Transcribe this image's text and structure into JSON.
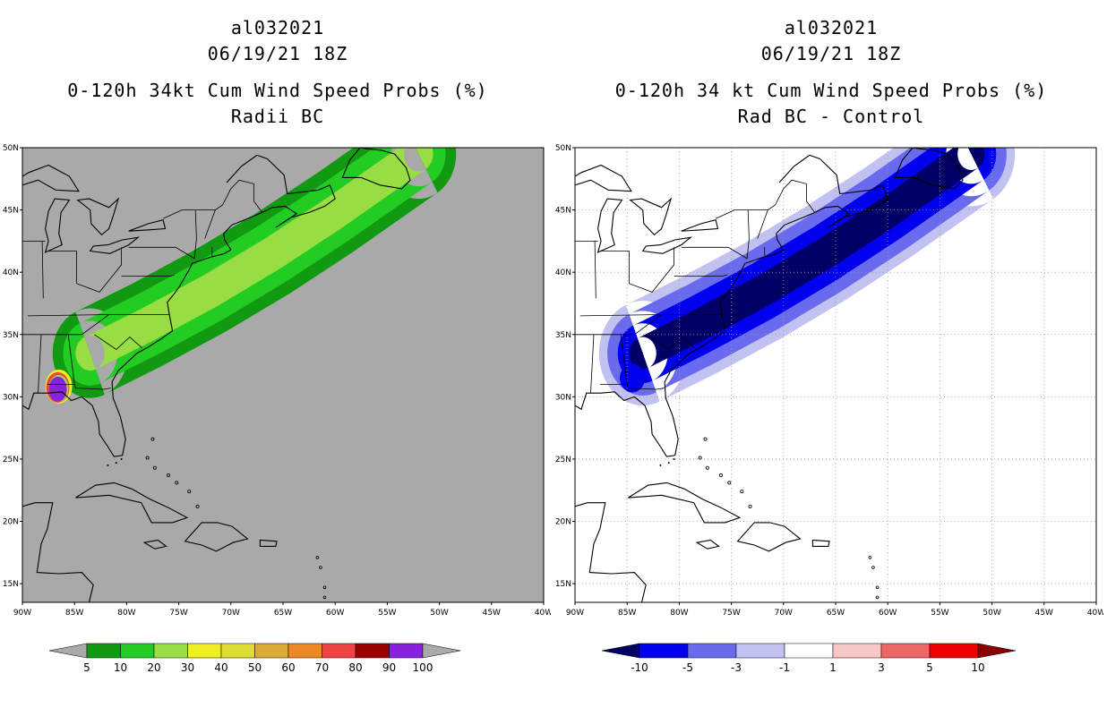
{
  "left_panel": {
    "storm_id": "al032021",
    "datetime": "06/19/21 18Z",
    "title": "0-120h 34kt Cum Wind Speed Probs (%)",
    "subtitle": "Radii BC",
    "background": "#a9a9a9",
    "colorbar": {
      "labels": [
        "5",
        "10",
        "20",
        "30",
        "40",
        "50",
        "60",
        "70",
        "80",
        "90",
        "100"
      ],
      "colors": [
        "#aaaaaa",
        "#119911",
        "#22cc22",
        "#99dd44",
        "#eeee22",
        "#dddd33",
        "#ddaa33",
        "#ee8822",
        "#ee4444",
        "#990000",
        "#8822dd",
        "#aaaaaa"
      ]
    }
  },
  "right_panel": {
    "storm_id": "al032021",
    "datetime": "06/19/21 18Z",
    "title": "0-120h 34 kt Cum Wind Speed Probs (%)",
    "subtitle": "Rad BC - Control",
    "background": "#ffffff",
    "colorbar": {
      "labels": [
        "-10",
        "-5",
        "-3",
        "-1",
        "1",
        "3",
        "5",
        "10"
      ],
      "colors": [
        "#000066",
        "#0000ee",
        "#6a6aee",
        "#c2c2f2",
        "#ffffff",
        "#f7c6c6",
        "#ee6666",
        "#ee0000",
        "#880000"
      ]
    }
  },
  "axes": {
    "lat_labels": [
      "50N",
      "45N",
      "40N",
      "35N",
      "30N",
      "25N",
      "20N",
      "15N"
    ],
    "lon_labels": [
      "90W",
      "85W",
      "80W",
      "75W",
      "70W",
      "65W",
      "60W",
      "55W",
      "50W",
      "45W",
      "40W"
    ],
    "lat_range": [
      13.5,
      50
    ],
    "lon_range": [
      -90,
      -40
    ]
  },
  "swath": {
    "track": [
      [
        -83.5,
        33.5
      ],
      [
        -78,
        35.8
      ],
      [
        -72,
        38.5
      ],
      [
        -66,
        41.5
      ],
      [
        -60,
        44.8
      ],
      [
        -52,
        49.5
      ]
    ],
    "left_levels": {
      "5": 3.6,
      "10": 2.6,
      "20": 1.4
    },
    "right_levels": {
      "-1": 4.2,
      "-3": 3.4,
      "-5": 2.4,
      "-10": 1.3
    }
  }
}
